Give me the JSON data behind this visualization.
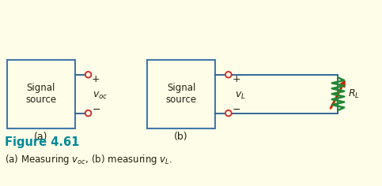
{
  "bg_color": "#FEFEE8",
  "box_edge_color": "#4477AA",
  "box_fill": "#FEFEE8",
  "terminal_color": "#CC3333",
  "wire_color": "#336699",
  "resistor_color": "#228833",
  "arrow_color": "#CC2200",
  "text_color": "#222211",
  "fig_title_color": "#008899",
  "label_a": "(a)",
  "label_b": "(b)",
  "figure_title": "Figure 4.61",
  "caption_left": "(a) Measuring ",
  "caption_mid": ", (b) measuring ",
  "xlim": [
    0,
    10
  ],
  "ylim": [
    0,
    5
  ]
}
